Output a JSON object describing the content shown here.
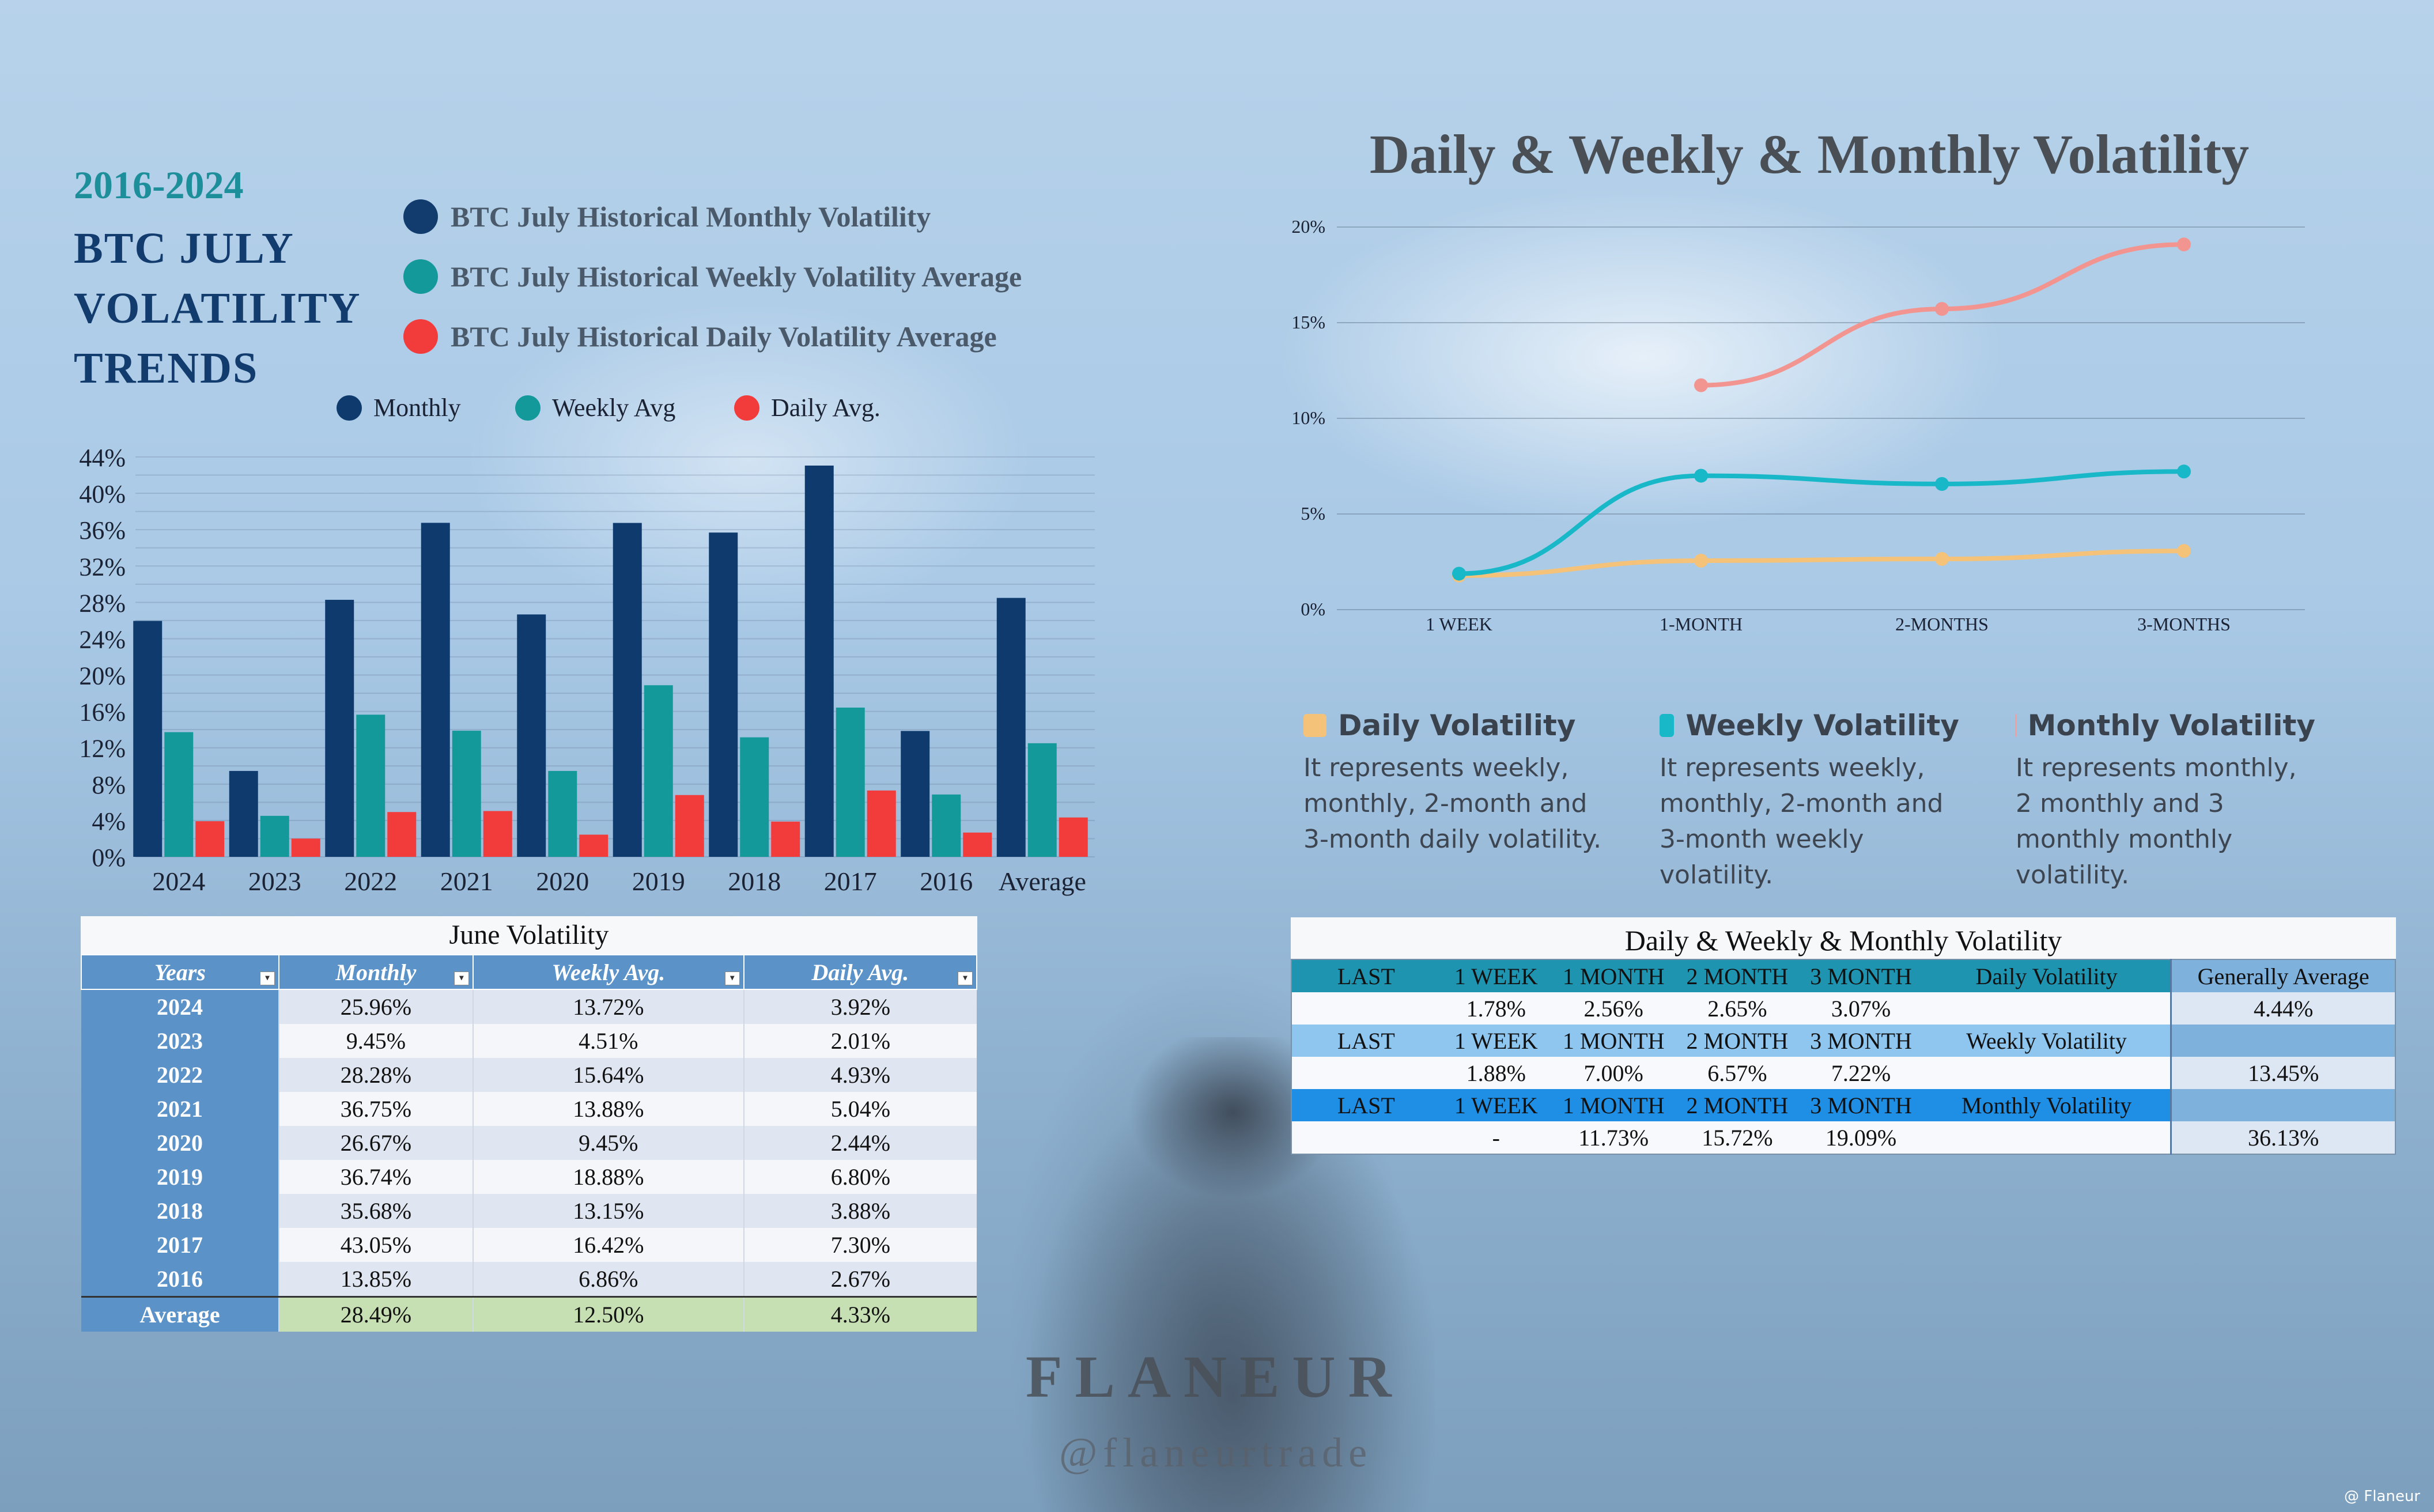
{
  "left_header": {
    "years": "2016-2024",
    "title_lines": [
      "BTC JULY",
      "VOLATILITY",
      "TRENDS"
    ],
    "legend": [
      {
        "label": "BTC July Historical Monthly Volatility",
        "color": "#123b6e"
      },
      {
        "label": "BTC July Historical Weekly Volatility Average",
        "color": "#14999a"
      },
      {
        "label": "BTC July Historical Daily Volatility Average",
        "color": "#f23b3b"
      }
    ]
  },
  "chart_data": [
    {
      "type": "bar",
      "title": "",
      "categories": [
        "2024",
        "2023",
        "2022",
        "2021",
        "2020",
        "2019",
        "2018",
        "2017",
        "2016",
        "Average"
      ],
      "series": [
        {
          "name": "Monthly",
          "color": "#0e3a6e",
          "values": [
            25.96,
            9.45,
            28.28,
            36.75,
            26.67,
            36.74,
            35.68,
            43.05,
            13.85,
            28.49
          ]
        },
        {
          "name": "Weekly Avg",
          "color": "#14999a",
          "values": [
            13.72,
            4.51,
            15.64,
            13.88,
            9.45,
            18.88,
            13.15,
            16.42,
            6.86,
            12.5
          ]
        },
        {
          "name": "Daily Avg.",
          "color": "#f23b3b",
          "values": [
            3.92,
            2.01,
            4.93,
            5.04,
            2.44,
            6.8,
            3.88,
            7.3,
            2.67,
            4.33
          ]
        }
      ],
      "ylim": [
        0,
        44
      ],
      "yticks": [
        "0%",
        "4%",
        "8%",
        "12%",
        "16%",
        "20%",
        "24%",
        "28%",
        "32%",
        "36%",
        "40%",
        "44%"
      ],
      "legend_position": "top",
      "grid": true
    },
    {
      "type": "line",
      "title": "Daily & Weekly & Monthly Volatility",
      "categories": [
        "1 WEEK",
        "1-MONTH",
        "2-MONTHS",
        "3-MONTHS"
      ],
      "series": [
        {
          "name": "Daily Volatility",
          "color": "#f5c27a",
          "values": [
            1.78,
            2.56,
            2.65,
            3.07
          ]
        },
        {
          "name": "Weekly Volatility",
          "color": "#19b8c9",
          "values": [
            1.88,
            7.0,
            6.57,
            7.22
          ]
        },
        {
          "name": "Monthly Volatility",
          "color": "#f29590",
          "values": [
            null,
            11.73,
            15.72,
            19.09
          ]
        }
      ],
      "ylim": [
        0,
        20
      ],
      "yticks": [
        "0%",
        "5%",
        "10%",
        "15%",
        "20%"
      ],
      "grid": true
    }
  ],
  "descriptions": [
    {
      "label": "Daily Volatility",
      "color": "#f5c27a",
      "text": "It represents weekly, monthly, 2-month and 3-month daily volatility."
    },
    {
      "label": "Weekly Volatility",
      "color": "#19b8c9",
      "text": "It represents weekly, monthly, 2-month and 3-month weekly volatility."
    },
    {
      "label": "Monthly Volatility",
      "color": "#f29590",
      "text": "It represents monthly, 2 monthly and 3 monthly monthly volatility."
    }
  ],
  "june_table": {
    "caption": "June Volatility",
    "headers": [
      "Years",
      "Monthly",
      "Weekly Avg.",
      "Daily Avg."
    ],
    "rows": [
      [
        "2024",
        "25.96%",
        "13.72%",
        "3.92%"
      ],
      [
        "2023",
        "9.45%",
        "4.51%",
        "2.01%"
      ],
      [
        "2022",
        "28.28%",
        "15.64%",
        "4.93%"
      ],
      [
        "2021",
        "36.75%",
        "13.88%",
        "5.04%"
      ],
      [
        "2020",
        "26.67%",
        "9.45%",
        "2.44%"
      ],
      [
        "2019",
        "36.74%",
        "18.88%",
        "6.80%"
      ],
      [
        "2018",
        "35.68%",
        "13.15%",
        "3.88%"
      ],
      [
        "2017",
        "43.05%",
        "16.42%",
        "7.30%"
      ],
      [
        "2016",
        "13.85%",
        "6.86%",
        "2.67%"
      ]
    ],
    "average": [
      "Average",
      "28.49%",
      "12.50%",
      "4.33%"
    ]
  },
  "dwm_table": {
    "caption": "Daily & Weekly & Monthly Volatility",
    "sections": [
      {
        "header": [
          "LAST",
          "1 WEEK",
          "1 MONTH",
          "2 MONTH",
          "3 MONTH",
          "Daily Volatility",
          "Generally Average"
        ],
        "values": [
          "",
          "1.78%",
          "2.56%",
          "2.65%",
          "3.07%",
          "",
          "4.44%"
        ]
      },
      {
        "header": [
          "LAST",
          "1 WEEK",
          "1 MONTH",
          "2 MONTH",
          "3 MONTH",
          "Weekly Volatility",
          ""
        ],
        "values": [
          "",
          "1.88%",
          "7.00%",
          "6.57%",
          "7.22%",
          "",
          "13.45%"
        ]
      },
      {
        "header": [
          "LAST",
          "1 WEEK",
          "1 MONTH",
          "2 MONTH",
          "3 MONTH",
          "Monthly Volatility",
          ""
        ],
        "values": [
          "",
          "-",
          "11.73%",
          "15.72%",
          "19.09%",
          "",
          "36.13%"
        ]
      }
    ]
  },
  "branding": {
    "name": "FLANEUR",
    "handle": "@flaneurtrade",
    "watermark": "@ Flaneur"
  }
}
